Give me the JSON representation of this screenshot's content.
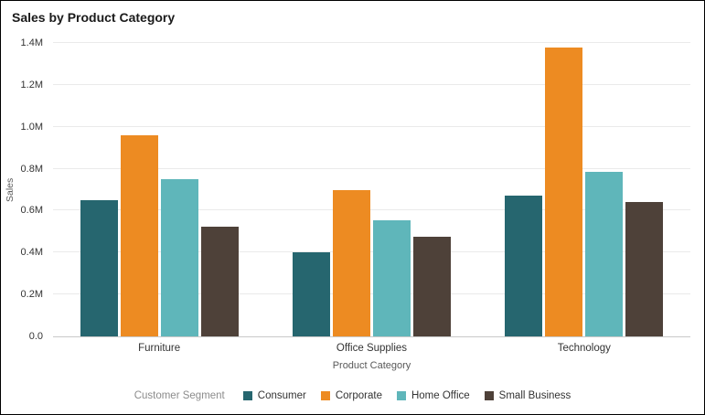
{
  "chart_data": {
    "type": "bar",
    "title": "Sales by Product Category",
    "xlabel": "Product Category",
    "ylabel": "Sales",
    "legend_title": "Customer Segment",
    "legend_position": "bottom",
    "grid": "horizontal",
    "categories": [
      "Furniture",
      "Office Supplies",
      "Technology"
    ],
    "series": [
      {
        "name": "Consumer",
        "color": "#26666F",
        "values": [
          650000,
          400000,
          670000
        ]
      },
      {
        "name": "Corporate",
        "color": "#ED8B22",
        "values": [
          960000,
          700000,
          1380000
        ]
      },
      {
        "name": "Home Office",
        "color": "#5FB6BA",
        "values": [
          750000,
          555000,
          785000
        ]
      },
      {
        "name": "Small Business",
        "color": "#4E4139",
        "values": [
          525000,
          475000,
          640000
        ]
      }
    ],
    "ylim": [
      0,
      1400000
    ],
    "y_ticks": [
      {
        "value": 0,
        "label": "0.0"
      },
      {
        "value": 200000,
        "label": "0.2M"
      },
      {
        "value": 400000,
        "label": "0.4M"
      },
      {
        "value": 600000,
        "label": "0.6M"
      },
      {
        "value": 800000,
        "label": "0.8M"
      },
      {
        "value": 1000000,
        "label": "1.0M"
      },
      {
        "value": 1200000,
        "label": "1.2M"
      },
      {
        "value": 1400000,
        "label": "1.4M"
      }
    ]
  },
  "colors": {
    "frame_border": "#000000",
    "gridline": "#eaeaea",
    "axis_line": "#c9c9c9",
    "title_text": "#1a1a1a",
    "tick_text": "#333333",
    "axis_title_text": "#595959",
    "legend_title_text": "#8c8c8c"
  }
}
